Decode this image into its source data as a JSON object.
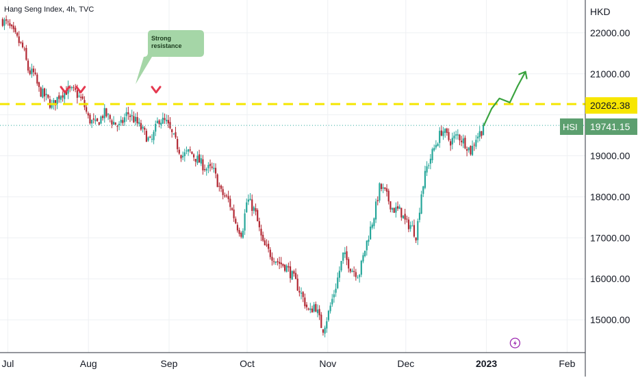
{
  "header": {
    "title": "Hang Seng Index, 4h, TVC"
  },
  "currency_label": "HKD",
  "annotation": {
    "text_line1": "Strong",
    "text_line2": "resistance"
  },
  "badges": {
    "resistance_value": "20262.38",
    "hsi_label": "HSI",
    "hsi_value": "19741.15"
  },
  "colors": {
    "up": "#26a69a",
    "down": "#b22833",
    "resistance": "#f4e600",
    "arrow": "#3aa33f",
    "callout_fill": "#a5d6a7",
    "marker": "#e53950",
    "badge_hsi": "#5c9f6f",
    "badge_res": "#f7e600",
    "event_icon": "#9c27b0"
  },
  "chart_data": {
    "type": "candlestick",
    "title": "Hang Seng Index, 4h, TVC",
    "ylabel": "HKD",
    "ylim": [
      14200,
      22800
    ],
    "y_ticks": [
      15000,
      16000,
      17000,
      18000,
      19000,
      20000,
      21000,
      22000
    ],
    "y_tick_labels": [
      "15000.00",
      "16000.00",
      "17000.00",
      "18000.00",
      "19000.00",
      "",
      "21000.00",
      "22000.00"
    ],
    "x_axis": [
      {
        "label": "Jul",
        "day": 0
      },
      {
        "label": "Aug",
        "day": 31
      },
      {
        "label": "Sep",
        "day": 62
      },
      {
        "label": "Oct",
        "day": 92
      },
      {
        "label": "Nov",
        "day": 123
      },
      {
        "label": "Dec",
        "day": 153
      },
      {
        "label": "2023",
        "day": 184
      },
      {
        "label": "Feb",
        "day": 215
      }
    ],
    "xlim_days": [
      -3,
      222
    ],
    "resistance_level": 20262.38,
    "last_price": 19741.15,
    "close_path": [
      [
        -2,
        22300
      ],
      [
        0,
        22200
      ],
      [
        3,
        21900
      ],
      [
        6,
        21600
      ],
      [
        8,
        21050
      ],
      [
        10,
        21000
      ],
      [
        12,
        20600
      ],
      [
        15,
        20400
      ],
      [
        17,
        20200
      ],
      [
        20,
        20500
      ],
      [
        23,
        20600
      ],
      [
        26,
        20550
      ],
      [
        29,
        20300
      ],
      [
        31,
        19900
      ],
      [
        34,
        19750
      ],
      [
        37,
        20050
      ],
      [
        40,
        19850
      ],
      [
        43,
        19700
      ],
      [
        46,
        20050
      ],
      [
        49,
        19850
      ],
      [
        52,
        19600
      ],
      [
        55,
        19300
      ],
      [
        58,
        19900
      ],
      [
        61,
        19800
      ],
      [
        64,
        19400
      ],
      [
        67,
        19000
      ],
      [
        70,
        19100
      ],
      [
        73,
        18900
      ],
      [
        76,
        18700
      ],
      [
        79,
        18650
      ],
      [
        82,
        18100
      ],
      [
        85,
        17900
      ],
      [
        88,
        17300
      ],
      [
        90,
        17100
      ],
      [
        92,
        17950
      ],
      [
        95,
        17650
      ],
      [
        98,
        16850
      ],
      [
        101,
        16600
      ],
      [
        104,
        16400
      ],
      [
        107,
        16300
      ],
      [
        110,
        16000
      ],
      [
        113,
        15600
      ],
      [
        116,
        15150
      ],
      [
        118,
        15400
      ],
      [
        121,
        14750
      ],
      [
        123,
        15100
      ],
      [
        126,
        15800
      ],
      [
        129,
        16600
      ],
      [
        132,
        16250
      ],
      [
        135,
        16100
      ],
      [
        138,
        16900
      ],
      [
        141,
        17600
      ],
      [
        143,
        18250
      ],
      [
        145,
        18100
      ],
      [
        148,
        17700
      ],
      [
        151,
        17650
      ],
      [
        153,
        17350
      ],
      [
        155,
        17300
      ],
      [
        157,
        17050
      ],
      [
        159,
        18100
      ],
      [
        161,
        18700
      ],
      [
        164,
        19200
      ],
      [
        167,
        19650
      ],
      [
        170,
        19350
      ],
      [
        173,
        19500
      ],
      [
        176,
        19300
      ],
      [
        178,
        19100
      ],
      [
        180,
        19450
      ],
      [
        182,
        19600
      ],
      [
        183,
        19741
      ]
    ],
    "candle_step_days": 0.7,
    "resistance_markers_days": [
      22,
      28,
      57
    ],
    "projection": [
      [
        183,
        19741
      ],
      [
        186,
        20150
      ],
      [
        189,
        20400
      ],
      [
        193,
        20300
      ],
      [
        196,
        20700
      ],
      [
        199,
        21050
      ]
    ],
    "event_icon_day": 195
  }
}
